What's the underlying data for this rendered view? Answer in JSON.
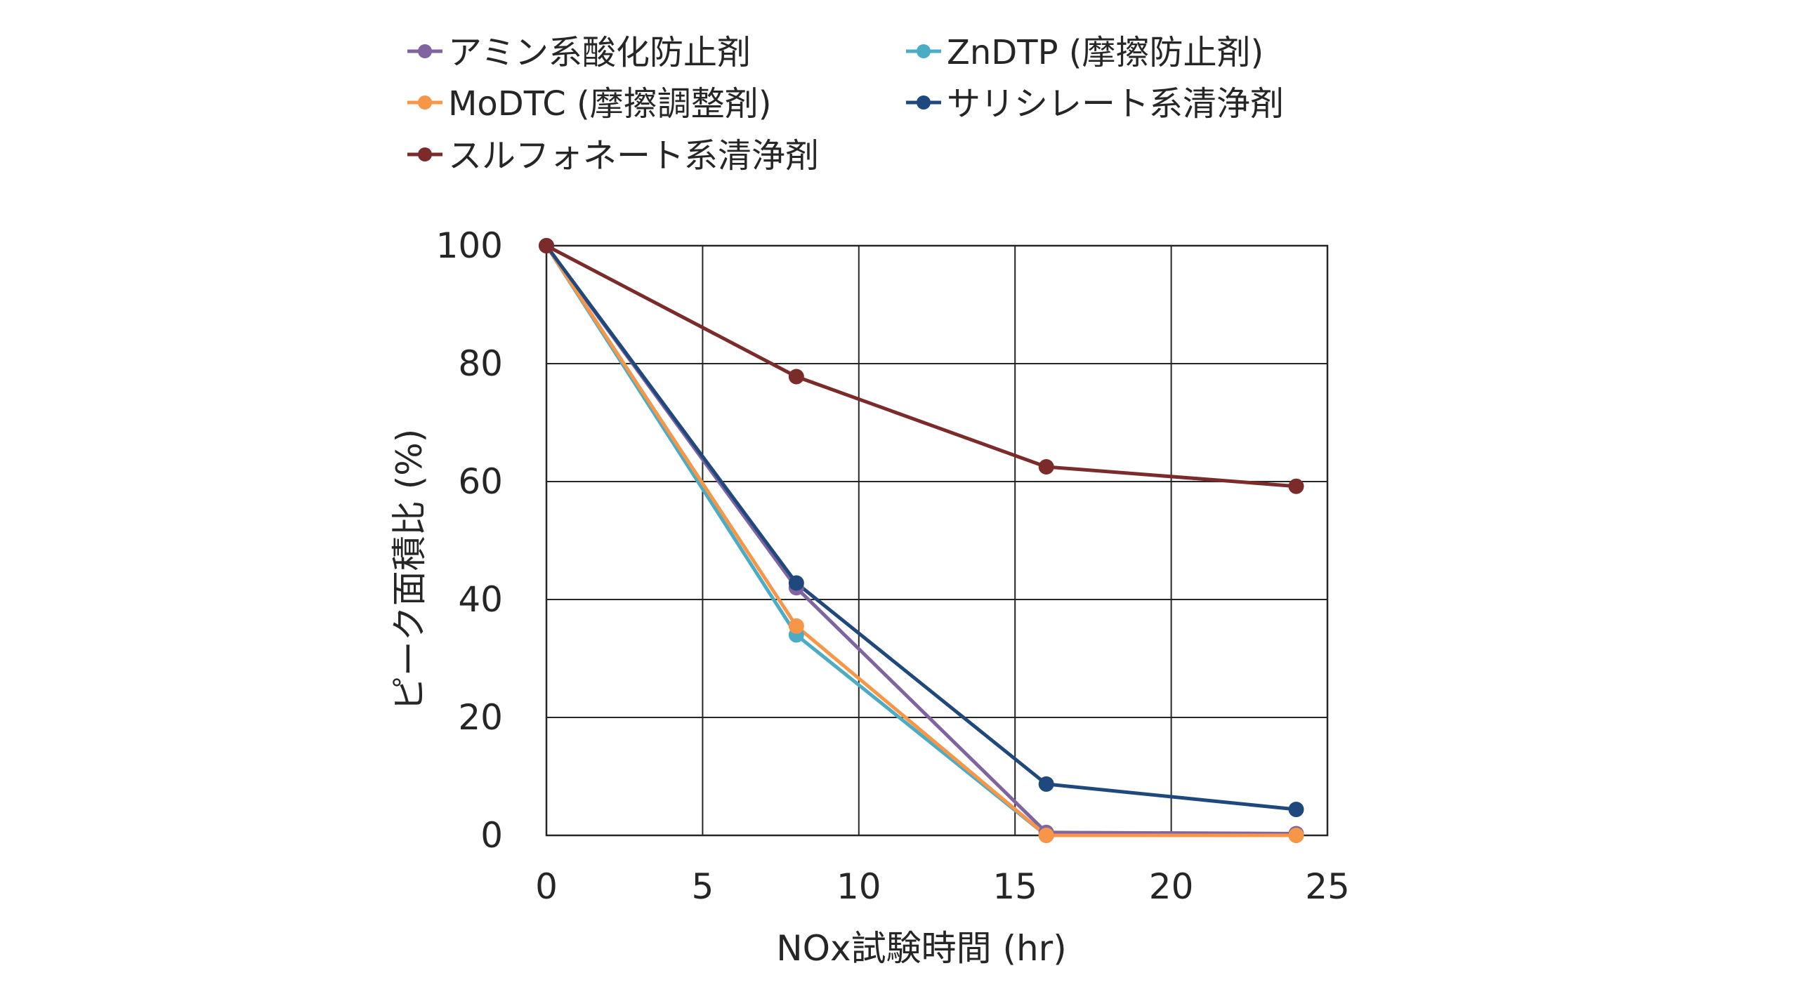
{
  "chart_data": {
    "type": "line",
    "title": "",
    "xlabel": "NOx試験時間 (hr)",
    "ylabel": "ピーク面積比 (%)",
    "xlim": [
      0,
      25
    ],
    "ylim": [
      0,
      100
    ],
    "xticks": [
      0,
      5,
      10,
      15,
      20,
      25
    ],
    "yticks": [
      0,
      20,
      40,
      60,
      80,
      100
    ],
    "grid": true,
    "legend_position": "top",
    "series": [
      {
        "name": "アミン系酸化防止剤",
        "color": "#8064A2",
        "x": [
          0,
          8,
          16,
          24
        ],
        "y": [
          100,
          42,
          0.5,
          0.3
        ]
      },
      {
        "name": "ZnDTP (摩擦防止剤)",
        "color": "#4BACC6",
        "x": [
          0,
          8,
          16,
          24
        ],
        "y": [
          100,
          34,
          0,
          0
        ]
      },
      {
        "name": "MoDTC (摩擦調整剤)",
        "color": "#F79646",
        "x": [
          0,
          8,
          16,
          24
        ],
        "y": [
          100,
          35.5,
          0,
          0
        ]
      },
      {
        "name": "サリシレート系清浄剤",
        "color": "#1F497D",
        "x": [
          0,
          8,
          16,
          24
        ],
        "y": [
          100,
          42.8,
          8.7,
          4.4
        ]
      },
      {
        "name": "スルフォネート系清浄剤",
        "color": "#7B2C2A",
        "x": [
          0,
          8,
          16,
          24
        ],
        "y": [
          100,
          77.8,
          62.5,
          59.2
        ]
      }
    ]
  }
}
